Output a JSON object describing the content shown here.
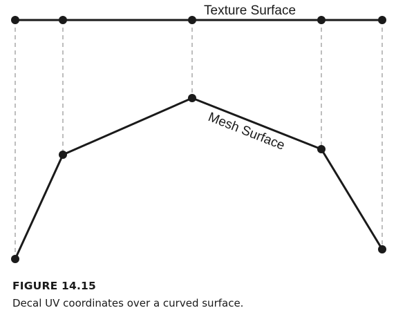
{
  "figure": {
    "texture_label": "Texture Surface",
    "mesh_label": "Mesh Surface",
    "caption_number": "FIGURE 14.15",
    "caption_text": "Decal UV coordinates over a curved surface."
  }
}
